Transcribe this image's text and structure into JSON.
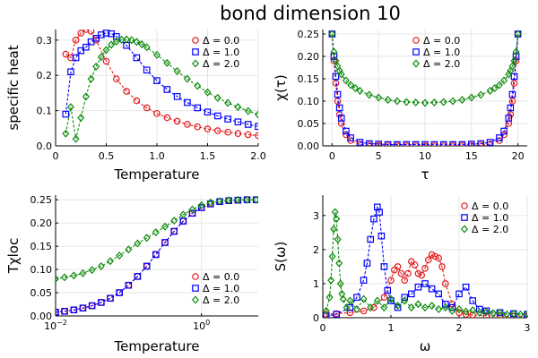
{
  "title": "bond dimension 10",
  "colors": {
    "red": "#e41a1c",
    "blue": "#0000ff",
    "green": "#0a8a0a"
  },
  "legend_labels": [
    "Δ = 0.0",
    "Δ = 1.0",
    "Δ = 2.0"
  ],
  "chart_data": [
    {
      "id": "specific-heat",
      "type": "scatter",
      "xlabel": "Temperature",
      "ylabel": "specific heat",
      "xlim": [
        0,
        2
      ],
      "ylim": [
        0,
        0.33
      ],
      "xticks": [
        0,
        0.5,
        1.0,
        1.5,
        2.0
      ],
      "xtick_labels": [
        "0",
        "0.5",
        "1.0",
        "1.5",
        "2.0"
      ],
      "yticks": [
        0,
        0.1,
        0.2,
        0.3
      ],
      "ytick_labels": [
        "0.0",
        "0.1",
        "0.2",
        "0.3"
      ],
      "legend": "top-right",
      "series": [
        {
          "name": "Δ = 0.0",
          "color": "red",
          "marker": "circle",
          "x": [
            0.1,
            0.15,
            0.2,
            0.25,
            0.3,
            0.35,
            0.4,
            0.5,
            0.6,
            0.7,
            0.8,
            0.9,
            1.0,
            1.1,
            1.2,
            1.3,
            1.4,
            1.5,
            1.6,
            1.7,
            1.8,
            1.9,
            2.0
          ],
          "y": [
            0.26,
            0.25,
            0.3,
            0.32,
            0.33,
            0.325,
            0.3,
            0.24,
            0.19,
            0.155,
            0.128,
            0.108,
            0.092,
            0.08,
            0.07,
            0.061,
            0.054,
            0.048,
            0.043,
            0.039,
            0.035,
            0.032,
            0.029
          ]
        },
        {
          "name": "Δ = 1.0",
          "color": "blue",
          "marker": "square",
          "x": [
            0.1,
            0.15,
            0.2,
            0.25,
            0.3,
            0.35,
            0.4,
            0.45,
            0.5,
            0.55,
            0.6,
            0.7,
            0.8,
            0.9,
            1.0,
            1.1,
            1.2,
            1.3,
            1.4,
            1.5,
            1.6,
            1.7,
            1.8,
            1.9,
            2.0
          ],
          "y": [
            0.09,
            0.21,
            0.25,
            0.27,
            0.28,
            0.295,
            0.305,
            0.315,
            0.32,
            0.318,
            0.31,
            0.285,
            0.25,
            0.215,
            0.185,
            0.16,
            0.14,
            0.123,
            0.108,
            0.096,
            0.085,
            0.076,
            0.068,
            0.061,
            0.055
          ]
        },
        {
          "name": "Δ = 2.0",
          "color": "green",
          "marker": "diamond",
          "x": [
            0.1,
            0.15,
            0.2,
            0.25,
            0.3,
            0.35,
            0.4,
            0.45,
            0.5,
            0.55,
            0.6,
            0.65,
            0.7,
            0.75,
            0.8,
            0.85,
            0.9,
            1.0,
            1.1,
            1.2,
            1.3,
            1.4,
            1.5,
            1.6,
            1.7,
            1.8,
            1.9,
            2.0
          ],
          "y": [
            0.035,
            0.11,
            0.02,
            0.08,
            0.14,
            0.19,
            0.225,
            0.252,
            0.272,
            0.287,
            0.296,
            0.301,
            0.302,
            0.3,
            0.295,
            0.288,
            0.28,
            0.258,
            0.235,
            0.212,
            0.19,
            0.17,
            0.152,
            0.136,
            0.122,
            0.11,
            0.099,
            0.089
          ]
        }
      ]
    },
    {
      "id": "chi-tau",
      "type": "scatter",
      "xlabel": "τ",
      "ylabel": "χ(τ)",
      "xlim": [
        -1,
        21
      ],
      "ylim": [
        0,
        0.26
      ],
      "xticks": [
        0,
        5,
        10,
        15,
        20
      ],
      "xtick_labels": [
        "0",
        "5",
        "10",
        "15",
        "20"
      ],
      "yticks": [
        0,
        0.05,
        0.1,
        0.15,
        0.2,
        0.25
      ],
      "ytick_labels": [
        "0.00",
        "0.05",
        "0.10",
        "0.15",
        "0.20",
        "0.25"
      ],
      "legend": "top-center",
      "series": [
        {
          "name": "Δ = 0.0",
          "color": "red",
          "marker": "circle",
          "x": [
            0,
            0.2,
            0.4,
            0.6,
            0.8,
            1.0,
            1.5,
            2,
            3,
            4,
            5,
            6,
            7,
            8,
            9,
            10,
            11,
            12,
            13,
            14,
            15,
            16,
            17,
            18,
            18.5,
            19,
            19.2,
            19.4,
            19.6,
            19.8,
            20
          ],
          "y": [
            0.25,
            0.19,
            0.14,
            0.1,
            0.07,
            0.05,
            0.025,
            0.012,
            0.004,
            0.002,
            0.001,
            0.0005,
            0.0003,
            0.0002,
            0.0002,
            0.0002,
            0.0002,
            0.0002,
            0.0003,
            0.0005,
            0.001,
            0.002,
            0.004,
            0.012,
            0.025,
            0.05,
            0.07,
            0.1,
            0.14,
            0.19,
            0.25
          ]
        },
        {
          "name": "Δ = 1.0",
          "color": "blue",
          "marker": "square",
          "x": [
            0,
            0.2,
            0.4,
            0.6,
            0.8,
            1.0,
            1.5,
            2,
            3,
            4,
            5,
            6,
            7,
            8,
            9,
            10,
            11,
            12,
            13,
            14,
            15,
            16,
            17,
            18,
            18.5,
            19,
            19.2,
            19.4,
            19.6,
            19.8,
            20
          ],
          "y": [
            0.25,
            0.2,
            0.155,
            0.115,
            0.085,
            0.062,
            0.033,
            0.018,
            0.008,
            0.005,
            0.004,
            0.003,
            0.003,
            0.003,
            0.003,
            0.003,
            0.003,
            0.003,
            0.003,
            0.003,
            0.004,
            0.005,
            0.008,
            0.018,
            0.033,
            0.062,
            0.085,
            0.115,
            0.155,
            0.2,
            0.25
          ]
        },
        {
          "name": "Δ = 2.0",
          "color": "green",
          "marker": "diamond",
          "x": [
            0,
            0.2,
            0.4,
            0.6,
            0.8,
            1.0,
            1.5,
            2,
            2.5,
            3,
            4,
            5,
            6,
            7,
            8,
            9,
            10,
            11,
            12,
            13,
            14,
            15,
            16,
            17,
            17.5,
            18,
            18.5,
            19,
            19.2,
            19.4,
            19.6,
            19.8,
            20
          ],
          "y": [
            0.25,
            0.21,
            0.19,
            0.178,
            0.168,
            0.16,
            0.146,
            0.136,
            0.129,
            0.123,
            0.114,
            0.108,
            0.103,
            0.1,
            0.098,
            0.097,
            0.096,
            0.097,
            0.098,
            0.1,
            0.103,
            0.108,
            0.114,
            0.123,
            0.129,
            0.136,
            0.146,
            0.16,
            0.168,
            0.178,
            0.19,
            0.21,
            0.25
          ]
        }
      ]
    },
    {
      "id": "t-chi-loc",
      "type": "scatter",
      "xlabel": "Temperature",
      "ylabel": "Tχloc",
      "xscale": "log",
      "xlim": [
        0.01,
        6
      ],
      "ylim": [
        0,
        0.26
      ],
      "xticks": [
        0.01,
        1
      ],
      "xtick_labels": [
        "10",
        "10"
      ],
      "xtick_exps": [
        "−2",
        "0"
      ],
      "yticks": [
        0,
        0.05,
        0.1,
        0.15,
        0.2,
        0.25
      ],
      "ytick_labels": [
        "0.00",
        "0.05",
        "0.10",
        "0.15",
        "0.20",
        "0.25"
      ],
      "legend": "bottom-right",
      "series": [
        {
          "name": "Δ = 0.0",
          "color": "red",
          "marker": "circle",
          "x": [
            0.01,
            0.0133,
            0.0178,
            0.0237,
            0.0316,
            0.0422,
            0.0562,
            0.075,
            0.1,
            0.133,
            0.178,
            0.237,
            0.316,
            0.422,
            0.562,
            0.75,
            1.0,
            1.33,
            1.78,
            2.37,
            3.16,
            4.22,
            5.62
          ],
          "y": [
            0.008,
            0.01,
            0.013,
            0.017,
            0.022,
            0.029,
            0.038,
            0.05,
            0.066,
            0.085,
            0.107,
            0.132,
            0.158,
            0.182,
            0.204,
            0.221,
            0.233,
            0.241,
            0.246,
            0.248,
            0.249,
            0.25,
            0.25
          ]
        },
        {
          "name": "Δ = 1.0",
          "color": "blue",
          "marker": "square",
          "x": [
            0.01,
            0.0133,
            0.0178,
            0.0237,
            0.0316,
            0.0422,
            0.0562,
            0.075,
            0.1,
            0.133,
            0.178,
            0.237,
            0.316,
            0.422,
            0.562,
            0.75,
            1.0,
            1.33,
            1.78,
            2.37,
            3.16,
            4.22,
            5.62
          ],
          "y": [
            0.008,
            0.01,
            0.013,
            0.017,
            0.022,
            0.029,
            0.038,
            0.05,
            0.066,
            0.085,
            0.107,
            0.132,
            0.158,
            0.182,
            0.204,
            0.221,
            0.233,
            0.241,
            0.246,
            0.248,
            0.249,
            0.25,
            0.25
          ]
        },
        {
          "name": "Δ = 2.0",
          "color": "green",
          "marker": "diamond",
          "x": [
            0.01,
            0.0133,
            0.0178,
            0.0237,
            0.0316,
            0.0422,
            0.0562,
            0.075,
            0.1,
            0.133,
            0.178,
            0.237,
            0.316,
            0.422,
            0.562,
            0.75,
            1.0,
            1.33,
            1.78,
            2.37,
            3.16,
            4.22,
            5.62
          ],
          "y": [
            0.08,
            0.083,
            0.087,
            0.092,
            0.099,
            0.107,
            0.118,
            0.13,
            0.143,
            0.156,
            0.168,
            0.18,
            0.192,
            0.205,
            0.218,
            0.229,
            0.238,
            0.244,
            0.247,
            0.249,
            0.25,
            0.25,
            0.25
          ]
        }
      ]
    },
    {
      "id": "spectral-s-omega",
      "type": "scatter",
      "xlabel": "ω",
      "ylabel": "S(ω)",
      "xlim": [
        0,
        3
      ],
      "ylim": [
        0,
        3.6
      ],
      "xticks": [
        0,
        1,
        2,
        3
      ],
      "xtick_labels": [
        "0",
        "1",
        "2",
        "3"
      ],
      "yticks": [
        0,
        1,
        2,
        3
      ],
      "ytick_labels": [
        "0",
        "1",
        "2",
        "3"
      ],
      "legend": "top-right",
      "series": [
        {
          "name": "Δ = 0.0",
          "color": "red",
          "marker": "circle",
          "x": [
            0.05,
            0.2,
            0.4,
            0.6,
            0.75,
            0.9,
            1.0,
            1.05,
            1.1,
            1.15,
            1.2,
            1.25,
            1.3,
            1.35,
            1.4,
            1.45,
            1.5,
            1.55,
            1.6,
            1.65,
            1.7,
            1.75,
            1.8,
            1.9,
            2.0,
            2.1,
            2.2,
            2.4,
            2.6,
            2.8,
            3.0
          ],
          "y": [
            0.1,
            0.12,
            0.15,
            0.2,
            0.3,
            0.6,
            1.1,
            1.4,
            1.5,
            1.3,
            1.1,
            1.3,
            1.65,
            1.55,
            1.3,
            1.25,
            1.45,
            1.7,
            1.85,
            1.8,
            1.75,
            1.5,
            1.0,
            0.4,
            0.15,
            0.1,
            0.08,
            0.06,
            0.05,
            0.04,
            0.04
          ]
        },
        {
          "name": "Δ = 1.0",
          "color": "blue",
          "marker": "square",
          "x": [
            0.05,
            0.2,
            0.4,
            0.5,
            0.6,
            0.65,
            0.7,
            0.75,
            0.8,
            0.83,
            0.86,
            0.9,
            0.95,
            1.0,
            1.1,
            1.2,
            1.3,
            1.4,
            1.5,
            1.6,
            1.7,
            1.8,
            1.9,
            2.0,
            2.1,
            2.2,
            2.3,
            2.4,
            2.6,
            2.8,
            3.0
          ],
          "y": [
            0.05,
            0.1,
            0.3,
            0.6,
            1.1,
            1.6,
            2.3,
            2.9,
            3.25,
            3.1,
            2.4,
            1.5,
            0.8,
            0.5,
            0.3,
            0.6,
            0.7,
            0.9,
            1.0,
            0.85,
            0.7,
            0.4,
            0.3,
            0.7,
            0.9,
            0.5,
            0.25,
            0.2,
            0.15,
            0.12,
            0.1
          ]
        },
        {
          "name": "Δ = 2.0",
          "color": "green",
          "marker": "diamond",
          "x": [
            0.05,
            0.1,
            0.12,
            0.14,
            0.16,
            0.18,
            0.2,
            0.22,
            0.24,
            0.26,
            0.28,
            0.3,
            0.35,
            0.4,
            0.5,
            0.6,
            0.7,
            0.8,
            0.9,
            1.0,
            1.1,
            1.2,
            1.3,
            1.4,
            1.5,
            1.6,
            1.7,
            1.8,
            1.9,
            2.0,
            2.1,
            2.2,
            2.3,
            2.4,
            2.5,
            2.6,
            2.7,
            2.8,
            2.9,
            3.0
          ],
          "y": [
            0.2,
            0.6,
            1.1,
            1.8,
            2.6,
            3.1,
            2.9,
            2.3,
            1.6,
            1.0,
            0.7,
            0.55,
            0.3,
            0.5,
            0.25,
            0.55,
            0.3,
            0.5,
            0.3,
            0.55,
            0.35,
            0.5,
            0.3,
            0.4,
            0.3,
            0.35,
            0.25,
            0.3,
            0.2,
            0.25,
            0.18,
            0.22,
            0.15,
            0.17,
            0.13,
            0.15,
            0.1,
            0.12,
            0.1,
            0.1
          ]
        }
      ]
    }
  ]
}
